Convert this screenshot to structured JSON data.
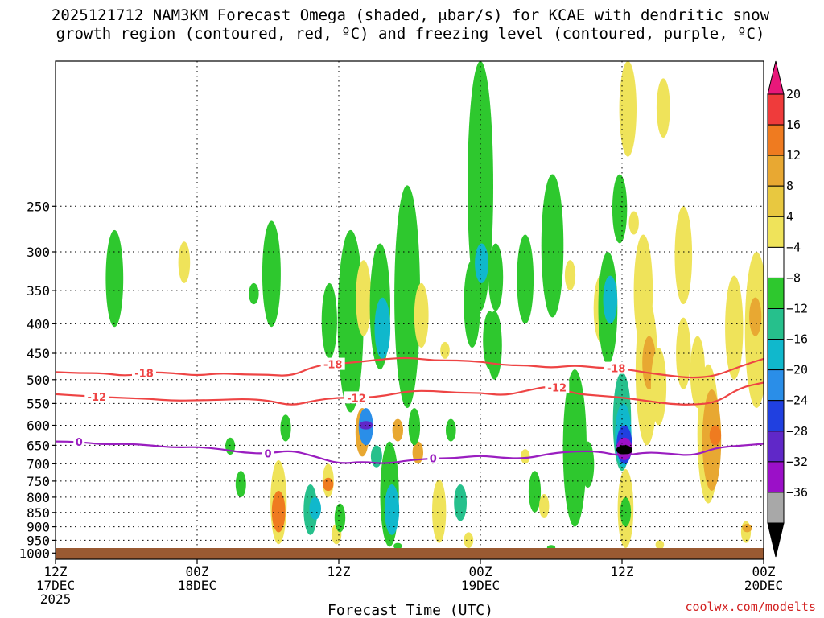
{
  "chart_data": {
    "type": "heatmap",
    "title_line1": "2025121712 NAM3KM Forecast Omega (shaded, μbar/s) for KCAE with dendritic snow",
    "title_line2": "growth region (contoured, red, ºC) and freezing level (contoured, purple, ºC)",
    "xlabel": "Forecast Time (UTC)",
    "credit": "coolwx.com/modelts",
    "xlim_hours": [
      0,
      60
    ],
    "ylim_hPa": [
      1025,
      140
    ],
    "y_ticks": [
      250,
      300,
      350,
      400,
      450,
      500,
      550,
      600,
      650,
      700,
      750,
      800,
      850,
      900,
      950,
      1000
    ],
    "x_ticks": [
      {
        "hour": 0,
        "lines": [
          "12Z",
          "17DEC",
          "2025"
        ]
      },
      {
        "hour": 12,
        "lines": [
          "00Z",
          "18DEC"
        ]
      },
      {
        "hour": 24,
        "lines": [
          "12Z"
        ]
      },
      {
        "hour": 36,
        "lines": [
          "00Z",
          "19DEC"
        ]
      },
      {
        "hour": 48,
        "lines": [
          "12Z"
        ]
      },
      {
        "hour": 60,
        "lines": [
          "00Z",
          "20DEC"
        ]
      }
    ],
    "colorbar": {
      "labels": [
        20,
        16,
        12,
        8,
        4,
        -4,
        -8,
        -12,
        -16,
        -20,
        -24,
        -28,
        -32,
        -36
      ],
      "segments": [
        "#ef3b3b",
        "#ef7b20",
        "#e8a832",
        "#e8c840",
        "#efe35a",
        "#ffffff",
        "#2ec82e",
        "#26c08c",
        "#10b8cc",
        "#2a8ee8",
        "#2040e0",
        "#6028c8",
        "#9b10c8",
        "#a8a8a8"
      ],
      "top_cap": "#e8187a",
      "bottom_cap": "#000000"
    },
    "contours": {
      "dgz_top_-18C": {
        "label": "-18",
        "color": "#ee4444",
        "hours": [
          0,
          2,
          4,
          6,
          8,
          10,
          12,
          14,
          16,
          18,
          20,
          22,
          24,
          26,
          28,
          30,
          32,
          34,
          36,
          38,
          40,
          42,
          44,
          46,
          48,
          50,
          52,
          54,
          56,
          58,
          60
        ],
        "pressure": [
          485,
          487,
          487,
          493,
          485,
          487,
          492,
          487,
          490,
          490,
          493,
          473,
          469,
          465,
          460,
          458,
          463,
          463,
          465,
          472,
          472,
          477,
          472,
          477,
          478,
          486,
          492,
          497,
          492,
          474,
          460
        ]
      },
      "dgz_bottom_-12C": {
        "label": "-12",
        "color": "#ee4444",
        "hours": [
          0,
          2,
          4,
          6,
          8,
          10,
          12,
          14,
          16,
          18,
          20,
          22,
          24,
          26,
          28,
          30,
          32,
          34,
          36,
          38,
          40,
          42,
          44,
          46,
          48,
          50,
          52,
          54,
          56,
          58,
          60
        ],
        "pressure": [
          530,
          533,
          536,
          538,
          540,
          544,
          543,
          542,
          540,
          543,
          555,
          543,
          537,
          538,
          533,
          523,
          523,
          527,
          527,
          533,
          522,
          512,
          529,
          533,
          537,
          544,
          551,
          553,
          548,
          516,
          506
        ]
      },
      "freezing_0C": {
        "label": "0",
        "color": "#9a1ec0",
        "hours": [
          0,
          2,
          4,
          6,
          8,
          10,
          12,
          14,
          16,
          18,
          20,
          22,
          24,
          26,
          28,
          30,
          32,
          34,
          36,
          38,
          40,
          42,
          44,
          46,
          48,
          50,
          52,
          54,
          56,
          58,
          60
        ],
        "pressure": [
          640,
          641,
          648,
          646,
          650,
          656,
          654,
          660,
          670,
          672,
          663,
          680,
          700,
          694,
          700,
          690,
          685,
          684,
          677,
          684,
          685,
          671,
          666,
          666,
          679,
          668,
          672,
          678,
          656,
          651,
          646
        ]
      }
    },
    "omega_features": [
      {
        "hour": 5.0,
        "p_top": 275,
        "p_bot": 405,
        "value": -6
      },
      {
        "hour": 10.9,
        "p_top": 288,
        "p_bot": 340,
        "value": 5
      },
      {
        "hour": 14.8,
        "p_top": 630,
        "p_bot": 675,
        "value": -6
      },
      {
        "hour": 15.7,
        "p_top": 720,
        "p_bot": 800,
        "value": -6
      },
      {
        "hour": 18.3,
        "p_top": 265,
        "p_bot": 405,
        "value": -6
      },
      {
        "hour": 16.8,
        "p_top": 340,
        "p_bot": 370,
        "value": -6
      },
      {
        "hour": 18.9,
        "p_top": 690,
        "p_bot": 965,
        "value": 6
      },
      {
        "hour": 18.9,
        "p_top": 780,
        "p_bot": 920,
        "value": 12
      },
      {
        "hour": 19.5,
        "p_top": 575,
        "p_bot": 640,
        "value": -6
      },
      {
        "hour": 21.6,
        "p_top": 760,
        "p_bot": 930,
        "value": -9
      },
      {
        "hour": 22.0,
        "p_top": 800,
        "p_bot": 875,
        "value": -13
      },
      {
        "hour": 23.1,
        "p_top": 700,
        "p_bot": 800,
        "value": 6
      },
      {
        "hour": 23.1,
        "p_top": 740,
        "p_bot": 780,
        "value": 12
      },
      {
        "hour": 23.8,
        "p_top": 890,
        "p_bot": 965,
        "value": 6
      },
      {
        "hour": 23.2,
        "p_top": 340,
        "p_bot": 460,
        "value": -6
      },
      {
        "hour": 24.1,
        "p_top": 820,
        "p_bot": 920,
        "value": -6
      },
      {
        "hour": 25.0,
        "p_top": 275,
        "p_bot": 570,
        "value": -6
      },
      {
        "hour": 26.1,
        "p_top": 310,
        "p_bot": 420,
        "value": 6
      },
      {
        "hour": 26.0,
        "p_top": 560,
        "p_bot": 680,
        "value": 10
      },
      {
        "hour": 26.3,
        "p_top": 560,
        "p_bot": 650,
        "value": -18
      },
      {
        "hour": 26.3,
        "p_top": 590,
        "p_bot": 610,
        "value": -26
      },
      {
        "hour": 27.5,
        "p_top": 290,
        "p_bot": 480,
        "value": -6
      },
      {
        "hour": 27.7,
        "p_top": 360,
        "p_bot": 460,
        "value": -13
      },
      {
        "hour": 27.2,
        "p_top": 650,
        "p_bot": 710,
        "value": -11
      },
      {
        "hour": 28.3,
        "p_top": 640,
        "p_bot": 975,
        "value": -7
      },
      {
        "hour": 28.5,
        "p_top": 760,
        "p_bot": 930,
        "value": -13
      },
      {
        "hour": 29.0,
        "p_top": 585,
        "p_bot": 640,
        "value": 9
      },
      {
        "hour": 29.8,
        "p_top": 230,
        "p_bot": 560,
        "value": -6
      },
      {
        "hour": 29.0,
        "p_top": 960,
        "p_bot": 985,
        "value": -6
      },
      {
        "hour": 31.0,
        "p_top": 340,
        "p_bot": 440,
        "value": 6
      },
      {
        "hour": 30.7,
        "p_top": 640,
        "p_bot": 700,
        "value": 9
      },
      {
        "hour": 30.4,
        "p_top": 560,
        "p_bot": 650,
        "value": -6
      },
      {
        "hour": 32.5,
        "p_top": 745,
        "p_bot": 960,
        "value": 5
      },
      {
        "hour": 33.0,
        "p_top": 430,
        "p_bot": 460,
        "value": 5
      },
      {
        "hour": 33.5,
        "p_top": 585,
        "p_bot": 640,
        "value": -6
      },
      {
        "hour": 34.3,
        "p_top": 760,
        "p_bot": 880,
        "value": -11
      },
      {
        "hour": 35.3,
        "p_top": 310,
        "p_bot": 440,
        "value": -6
      },
      {
        "hour": 35.0,
        "p_top": 920,
        "p_bot": 980,
        "value": 6
      },
      {
        "hour": 36.0,
        "p_top": 140,
        "p_bot": 380,
        "value": -7
      },
      {
        "hour": 36.1,
        "p_top": 290,
        "p_bot": 340,
        "value": -13
      },
      {
        "hour": 36.8,
        "p_top": 380,
        "p_bot": 480,
        "value": -6
      },
      {
        "hour": 37.3,
        "p_top": 290,
        "p_bot": 380,
        "value": -6
      },
      {
        "hour": 37.2,
        "p_top": 380,
        "p_bot": 500,
        "value": -6
      },
      {
        "hour": 39.8,
        "p_top": 660,
        "p_bot": 700,
        "value": 5
      },
      {
        "hour": 39.8,
        "p_top": 280,
        "p_bot": 400,
        "value": -6
      },
      {
        "hour": 40.6,
        "p_top": 720,
        "p_bot": 850,
        "value": -7
      },
      {
        "hour": 41.4,
        "p_top": 790,
        "p_bot": 870,
        "value": 5
      },
      {
        "hour": 42.0,
        "p_top": 970,
        "p_bot": 985,
        "value": -6
      },
      {
        "hour": 42.1,
        "p_top": 220,
        "p_bot": 390,
        "value": -6
      },
      {
        "hour": 43.6,
        "p_top": 310,
        "p_bot": 350,
        "value": 5
      },
      {
        "hour": 44.0,
        "p_top": 480,
        "p_bot": 900,
        "value": -6
      },
      {
        "hour": 45.1,
        "p_top": 640,
        "p_bot": 770,
        "value": -6
      },
      {
        "hour": 46.2,
        "p_top": 330,
        "p_bot": 430,
        "value": 5
      },
      {
        "hour": 46.8,
        "p_top": 300,
        "p_bot": 470,
        "value": -6
      },
      {
        "hour": 47.0,
        "p_top": 330,
        "p_bot": 400,
        "value": -12
      },
      {
        "hour": 47.8,
        "p_top": 220,
        "p_bot": 290,
        "value": -6
      },
      {
        "hour": 48.0,
        "p_top": 485,
        "p_bot": 720,
        "value": -8
      },
      {
        "hour": 48.1,
        "p_top": 550,
        "p_bot": 710,
        "value": -15
      },
      {
        "hour": 48.2,
        "p_top": 600,
        "p_bot": 700,
        "value": -22
      },
      {
        "hour": 48.2,
        "p_top": 630,
        "p_bot": 690,
        "value": -29
      },
      {
        "hour": 48.2,
        "p_top": 650,
        "p_bot": 675,
        "value": -36
      },
      {
        "hour": 48.3,
        "p_top": 715,
        "p_bot": 980,
        "value": 6
      },
      {
        "hour": 48.3,
        "p_top": 800,
        "p_bot": 900,
        "value": -6
      },
      {
        "hour": 48.5,
        "p_top": 140,
        "p_bot": 205,
        "value": 5
      },
      {
        "hour": 49.0,
        "p_top": 255,
        "p_bot": 280,
        "value": 5
      },
      {
        "hour": 49.8,
        "p_top": 280,
        "p_bot": 440,
        "value": 5
      },
      {
        "hour": 50.1,
        "p_top": 360,
        "p_bot": 650,
        "value": 5
      },
      {
        "hour": 50.3,
        "p_top": 420,
        "p_bot": 520,
        "value": 8
      },
      {
        "hour": 51.1,
        "p_top": 440,
        "p_bot": 600,
        "value": 5
      },
      {
        "hour": 51.5,
        "p_top": 150,
        "p_bot": 190,
        "value": 5
      },
      {
        "hour": 53.2,
        "p_top": 250,
        "p_bot": 370,
        "value": 5
      },
      {
        "hour": 53.2,
        "p_top": 390,
        "p_bot": 520,
        "value": 5
      },
      {
        "hour": 54.4,
        "p_top": 420,
        "p_bot": 560,
        "value": 5
      },
      {
        "hour": 55.3,
        "p_top": 470,
        "p_bot": 820,
        "value": 5
      },
      {
        "hour": 55.6,
        "p_top": 520,
        "p_bot": 780,
        "value": 9
      },
      {
        "hour": 55.9,
        "p_top": 600,
        "p_bot": 650,
        "value": 13
      },
      {
        "hour": 57.5,
        "p_top": 330,
        "p_bot": 500,
        "value": 5
      },
      {
        "hour": 58.5,
        "p_top": 880,
        "p_bot": 960,
        "value": 5
      },
      {
        "hour": 58.6,
        "p_top": 890,
        "p_bot": 920,
        "value": 9
      },
      {
        "hour": 59.4,
        "p_top": 300,
        "p_bot": 560,
        "value": 5
      },
      {
        "hour": 59.3,
        "p_top": 360,
        "p_bot": 420,
        "value": 8
      },
      {
        "hour": 51.2,
        "p_top": 950,
        "p_bot": 985,
        "value": 5
      }
    ]
  }
}
